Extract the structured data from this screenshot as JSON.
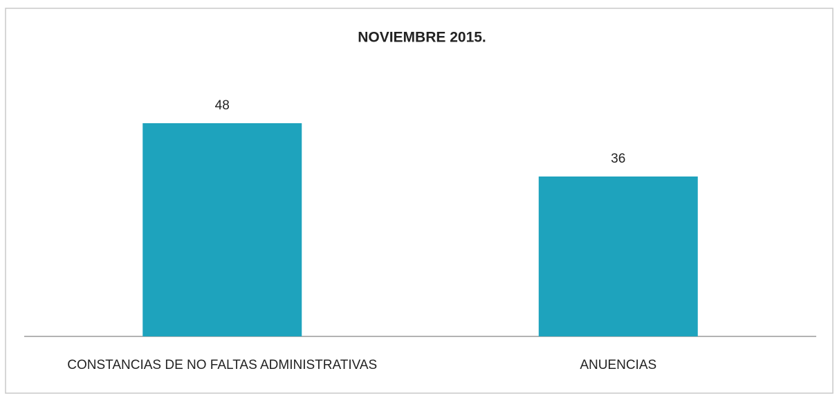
{
  "chart_data": {
    "type": "bar",
    "title": "NOVIEMBRE 2015.",
    "categories": [
      "CONSTANCIAS DE NO FALTAS ADMINISTRATIVAS",
      "ANUENCIAS"
    ],
    "values": [
      48,
      36
    ],
    "color": "#1ea3bd"
  }
}
